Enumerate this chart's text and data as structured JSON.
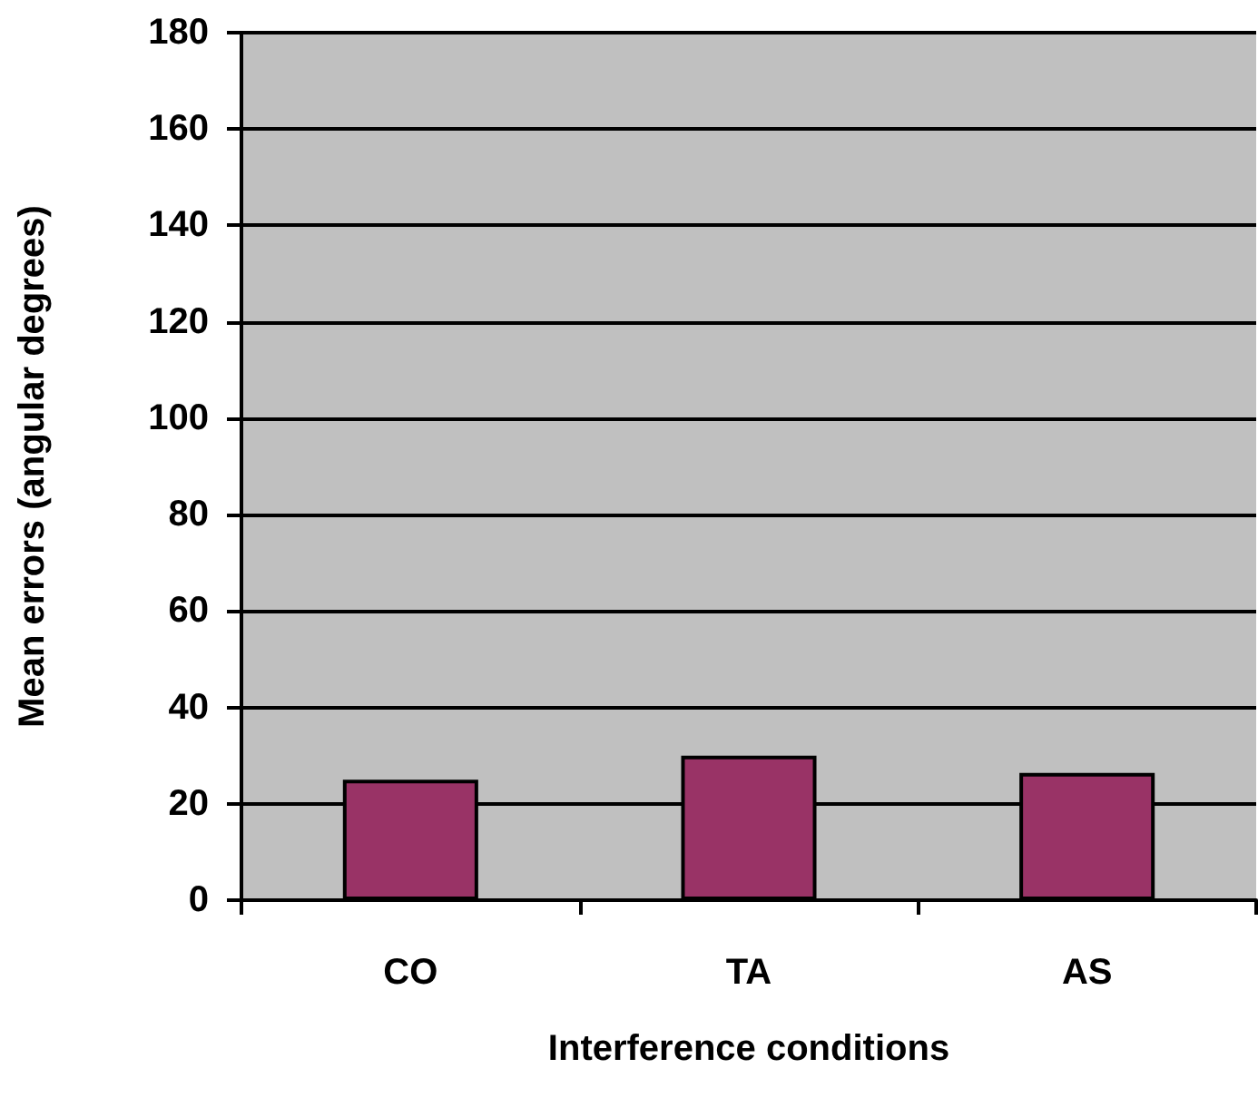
{
  "chart_data": {
    "type": "bar",
    "xlabel": "Interference conditions",
    "ylabel": "Mean errors (angular degrees)",
    "categories": [
      "CO",
      "TA",
      "AS"
    ],
    "series": [
      {
        "color": "#993366",
        "values": [
          25,
          30,
          26.4
        ]
      }
    ],
    "ylim": [
      0,
      180
    ],
    "yticks": [
      0,
      20,
      40,
      60,
      80,
      100,
      120,
      140,
      160,
      180
    ],
    "grid": "y"
  }
}
